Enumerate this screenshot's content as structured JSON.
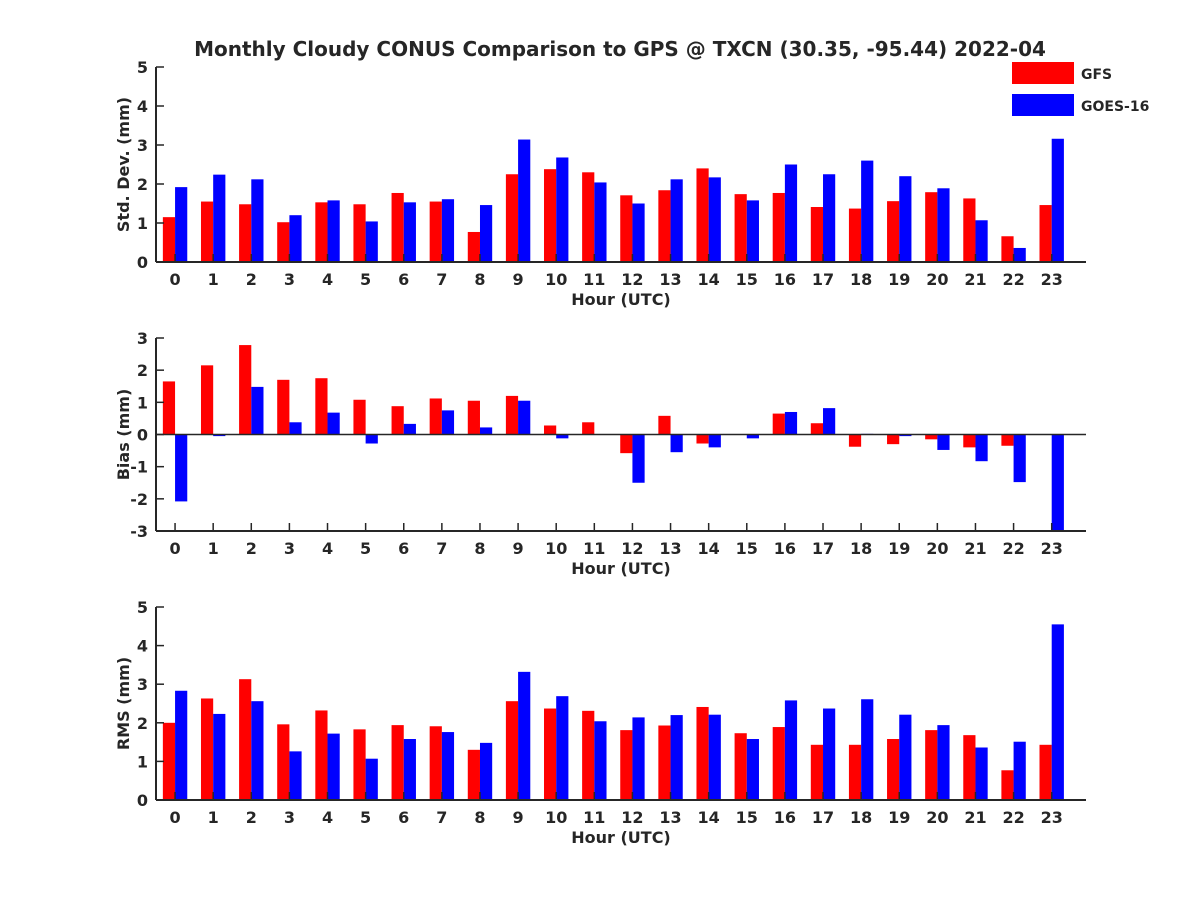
{
  "figure": {
    "title": "Monthly Cloudy CONUS Comparison to GPS @ TXCN (30.35, -95.44) 2022-04"
  },
  "legend": {
    "placement": "top-right",
    "entries": [
      {
        "name": "GFS",
        "color": "#ff0000"
      },
      {
        "name": "GOES-16",
        "color": "#0000ff"
      }
    ]
  },
  "chart_data": [
    {
      "type": "bar",
      "xlabel": "Hour (UTC)",
      "ylabel": "Std. Dev. (mm)",
      "ylim": [
        0,
        5
      ],
      "yticks": [
        0,
        1,
        2,
        3,
        4,
        5
      ],
      "categories": [
        "0",
        "1",
        "2",
        "3",
        "4",
        "5",
        "6",
        "7",
        "8",
        "9",
        "10",
        "11",
        "12",
        "13",
        "14",
        "15",
        "16",
        "17",
        "18",
        "19",
        "20",
        "21",
        "22",
        "23"
      ],
      "series": [
        {
          "name": "GFS",
          "color": "#ff0000",
          "values": [
            1.15,
            1.55,
            1.48,
            1.02,
            1.53,
            1.48,
            1.77,
            1.55,
            0.77,
            2.25,
            2.38,
            2.3,
            1.71,
            1.84,
            2.4,
            1.74,
            1.77,
            1.41,
            1.37,
            1.56,
            1.79,
            1.63,
            0.66,
            1.46
          ]
        },
        {
          "name": "GOES-16",
          "color": "#0000ff",
          "values": [
            1.92,
            2.24,
            2.12,
            1.2,
            1.58,
            1.04,
            1.53,
            1.61,
            1.46,
            3.14,
            2.68,
            2.04,
            1.5,
            2.12,
            2.17,
            1.58,
            2.5,
            2.25,
            2.6,
            2.2,
            1.89,
            1.07,
            0.36,
            3.16
          ]
        }
      ],
      "grid": false
    },
    {
      "type": "bar",
      "xlabel": "Hour (UTC)",
      "ylabel": "Bias (mm)",
      "ylim": [
        -3,
        3
      ],
      "yticks": [
        -3,
        -2,
        -1,
        0,
        1,
        2,
        3
      ],
      "categories": [
        "0",
        "1",
        "2",
        "3",
        "4",
        "5",
        "6",
        "7",
        "8",
        "9",
        "10",
        "11",
        "12",
        "13",
        "14",
        "15",
        "16",
        "17",
        "18",
        "19",
        "20",
        "21",
        "22",
        "23"
      ],
      "series": [
        {
          "name": "GFS",
          "color": "#ff0000",
          "values": [
            1.65,
            2.15,
            2.78,
            1.7,
            1.75,
            1.08,
            0.88,
            1.12,
            1.05,
            1.2,
            0.28,
            0.38,
            -0.58,
            0.58,
            -0.28,
            0.0,
            0.65,
            0.35,
            -0.38,
            -0.3,
            -0.15,
            -0.4,
            -0.35,
            0.0
          ]
        },
        {
          "name": "GOES-16",
          "color": "#0000ff",
          "values": [
            -2.08,
            -0.05,
            1.48,
            0.38,
            0.68,
            -0.28,
            0.33,
            0.75,
            0.22,
            1.05,
            -0.12,
            0.0,
            -1.5,
            -0.55,
            -0.4,
            -0.12,
            0.7,
            0.82,
            0.02,
            -0.05,
            -0.48,
            -0.83,
            -1.48,
            -3.0
          ]
        }
      ],
      "grid": false
    },
    {
      "type": "bar",
      "xlabel": "Hour (UTC)",
      "ylabel": "RMS (mm)",
      "ylim": [
        0,
        5
      ],
      "yticks": [
        0,
        1,
        2,
        3,
        4,
        5
      ],
      "categories": [
        "0",
        "1",
        "2",
        "3",
        "4",
        "5",
        "6",
        "7",
        "8",
        "9",
        "10",
        "11",
        "12",
        "13",
        "14",
        "15",
        "16",
        "17",
        "18",
        "19",
        "20",
        "21",
        "22",
        "23"
      ],
      "series": [
        {
          "name": "GFS",
          "color": "#ff0000",
          "values": [
            2.0,
            2.63,
            3.13,
            1.96,
            2.32,
            1.83,
            1.94,
            1.91,
            1.3,
            2.56,
            2.37,
            2.31,
            1.81,
            1.93,
            2.41,
            1.73,
            1.89,
            1.43,
            1.43,
            1.58,
            1.81,
            1.68,
            0.77,
            1.43
          ]
        },
        {
          "name": "GOES-16",
          "color": "#0000ff",
          "values": [
            2.83,
            2.23,
            2.56,
            1.26,
            1.72,
            1.07,
            1.58,
            1.76,
            1.48,
            3.32,
            2.69,
            2.04,
            2.14,
            2.2,
            2.21,
            1.58,
            2.58,
            2.37,
            2.61,
            2.21,
            1.94,
            1.36,
            1.51,
            4.55
          ]
        }
      ],
      "grid": false
    }
  ]
}
